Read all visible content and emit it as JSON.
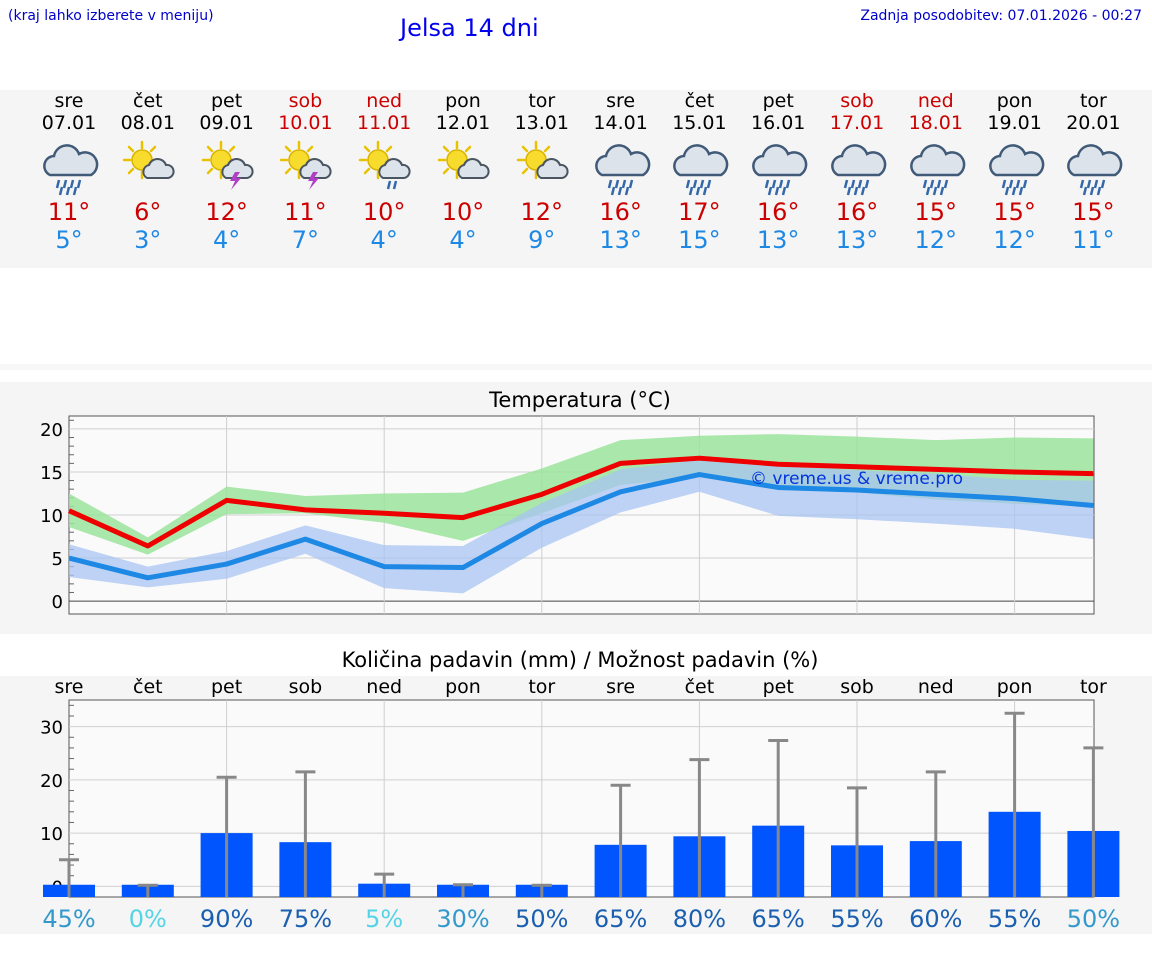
{
  "header": {
    "hint": "(kraj lahko izberete v meniju)",
    "title": "Jelsa 14 dni",
    "updated": "Zadnja posodobitev: 07.01.2026 - 00:27"
  },
  "days": [
    {
      "name": "sre",
      "date": "07.01",
      "weekend": false,
      "icon": "cloud-rain-icon",
      "max": "11°",
      "min": "5°"
    },
    {
      "name": "čet",
      "date": "08.01",
      "weekend": false,
      "icon": "sun-cloud-icon",
      "max": "6°",
      "min": "3°"
    },
    {
      "name": "pet",
      "date": "09.01",
      "weekend": false,
      "icon": "sun-storm-icon",
      "max": "12°",
      "min": "4°"
    },
    {
      "name": "sob",
      "date": "10.01",
      "weekend": true,
      "icon": "sun-storm-icon",
      "max": "11°",
      "min": "7°"
    },
    {
      "name": "ned",
      "date": "11.01",
      "weekend": true,
      "icon": "sun-cloud-rain-icon",
      "max": "10°",
      "min": "4°"
    },
    {
      "name": "pon",
      "date": "12.01",
      "weekend": false,
      "icon": "sun-cloud-icon",
      "max": "10°",
      "min": "4°"
    },
    {
      "name": "tor",
      "date": "13.01",
      "weekend": false,
      "icon": "sun-cloud-icon",
      "max": "12°",
      "min": "9°"
    },
    {
      "name": "sre",
      "date": "14.01",
      "weekend": false,
      "icon": "cloud-rain-icon",
      "max": "16°",
      "min": "13°"
    },
    {
      "name": "čet",
      "date": "15.01",
      "weekend": false,
      "icon": "cloud-rain-icon",
      "max": "17°",
      "min": "15°"
    },
    {
      "name": "pet",
      "date": "16.01",
      "weekend": false,
      "icon": "cloud-rain-icon",
      "max": "16°",
      "min": "13°"
    },
    {
      "name": "sob",
      "date": "17.01",
      "weekend": true,
      "icon": "cloud-rain-icon",
      "max": "16°",
      "min": "13°"
    },
    {
      "name": "ned",
      "date": "18.01",
      "weekend": true,
      "icon": "cloud-rain-icon",
      "max": "15°",
      "min": "12°"
    },
    {
      "name": "pon",
      "date": "19.01",
      "weekend": false,
      "icon": "cloud-rain-icon",
      "max": "15°",
      "min": "12°"
    },
    {
      "name": "tor",
      "date": "20.01",
      "weekend": false,
      "icon": "cloud-rain-icon",
      "max": "15°",
      "min": "11°"
    }
  ],
  "colors": {
    "max": "#ee0000",
    "min": "#1e88e5",
    "maxBand": "#9be39b",
    "minBand": "#a8c4f2",
    "bar": "#0055ff",
    "err": "#888888"
  },
  "chart_data": [
    {
      "type": "line",
      "title": "Temperatura (°C)",
      "watermark": "© vreme.us & vreme.pro",
      "yticks": [
        0,
        5,
        10,
        15,
        20
      ],
      "ylim": [
        -1.5,
        21.5
      ],
      "series": [
        {
          "name": "max",
          "values": [
            10.5,
            6.4,
            11.7,
            10.6,
            10.2,
            9.7,
            12.4,
            16.0,
            16.6,
            15.9,
            15.6,
            15.3,
            15.0,
            14.8
          ],
          "band_low": [
            8.6,
            5.4,
            10.1,
            10.2,
            9.1,
            7.0,
            10.2,
            13.5,
            14.4,
            12.9,
            12.6,
            11.8,
            11.3,
            11.0
          ],
          "band_high": [
            12.5,
            7.4,
            13.3,
            12.2,
            12.5,
            12.6,
            15.4,
            18.7,
            19.2,
            19.4,
            19.1,
            18.7,
            19.0,
            18.9
          ]
        },
        {
          "name": "min",
          "values": [
            5.0,
            2.7,
            4.3,
            7.2,
            4.0,
            3.9,
            9.0,
            12.7,
            14.7,
            13.2,
            12.9,
            12.4,
            11.9,
            11.1
          ],
          "band_low": [
            2.8,
            1.6,
            2.6,
            5.5,
            1.5,
            0.9,
            6.2,
            10.3,
            12.7,
            9.9,
            9.5,
            9.0,
            8.4,
            7.2
          ],
          "band_high": [
            6.6,
            4.0,
            5.8,
            8.8,
            6.5,
            6.4,
            11.4,
            15.3,
            16.4,
            15.7,
            15.2,
            14.8,
            14.1,
            14.0
          ]
        }
      ]
    },
    {
      "type": "bar",
      "title": "Količina padavin (mm) / Možnost padavin (%)",
      "categories": [
        "sre",
        "čet",
        "pet",
        "sob",
        "ned",
        "pon",
        "tor",
        "sre",
        "čet",
        "pet",
        "sob",
        "ned",
        "pon",
        "tor"
      ],
      "yticks": [
        0,
        10,
        20,
        30
      ],
      "ylim": [
        -2,
        35
      ],
      "values": [
        0.3,
        0,
        10.0,
        8.3,
        0.5,
        0,
        0,
        7.8,
        9.4,
        11.4,
        7.7,
        8.5,
        14.0,
        10.4
      ],
      "err_high": [
        5.0,
        0.2,
        20.5,
        21.5,
        2.3,
        0.3,
        0.2,
        19.0,
        23.8,
        27.4,
        18.5,
        21.5,
        32.5,
        26.0
      ],
      "probability": [
        "45%",
        "0%",
        "90%",
        "75%",
        "5%",
        "30%",
        "50%",
        "65%",
        "80%",
        "65%",
        "55%",
        "60%",
        "55%",
        "50%"
      ],
      "probability_colors": [
        "#3399cc",
        "#55d4e6",
        "#1a5fb0",
        "#1a5fb0",
        "#55d4e6",
        "#3399cc",
        "#1a5fb0",
        "#1a5fb0",
        "#1a5fb0",
        "#1a5fb0",
        "#1a5fb0",
        "#1a5fb0",
        "#1a5fb0",
        "#3399cc"
      ]
    }
  ]
}
